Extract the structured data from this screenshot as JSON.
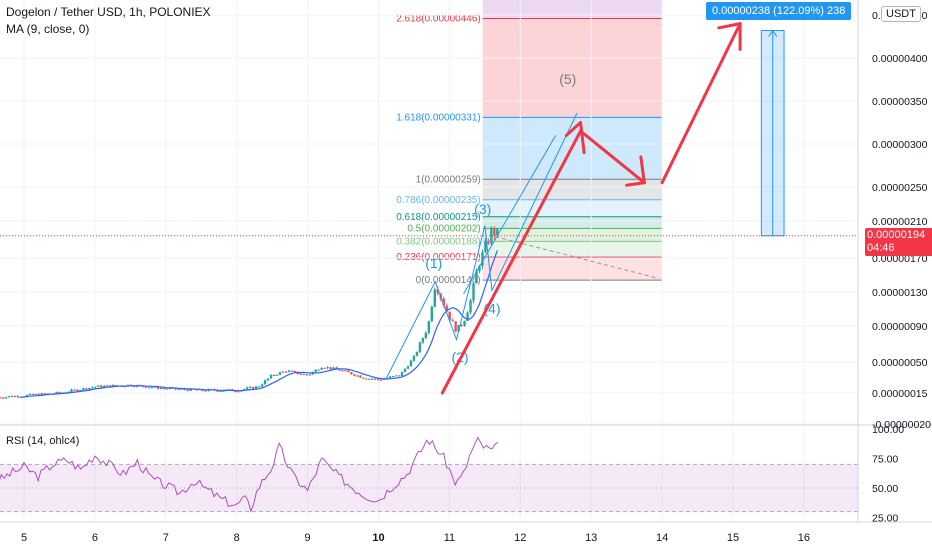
{
  "header": {
    "title": "Dogelon / Tether USD, 1h, POLONIEX",
    "indicator": "MA (9, close, 0)"
  },
  "currency_badge": "USDT",
  "price_tag": {
    "price": "0.00000194",
    "countdown": "04:46"
  },
  "measure_label": "0.00000238 (122.09%) 238",
  "rsi_label": "RSI (14, ohlc4)",
  "colors": {
    "up": "#26a69a",
    "down": "#ef5350",
    "ma": "#2962ff",
    "rsi": "#9c27b0",
    "fib_blue": "#2196f3",
    "fib_red": "#f23645",
    "arrow": "#f23645",
    "price_tag": "#f23645",
    "measure_box": "#2196f3"
  },
  "chart_data": [
    {
      "type": "candlestick",
      "x_axis": {
        "ticks": [
          "5",
          "6",
          "7",
          "8",
          "9",
          "10",
          "11",
          "12",
          "13",
          "14",
          "15",
          "16"
        ],
        "range": [
          4.6,
          17.2
        ]
      },
      "y_axis": {
        "ticks": [
          "0.00000450",
          "0.00000400",
          "0.00000350",
          "0.00000300",
          "0.00000250",
          "0.00000210",
          "0.00000170",
          "0.00000130",
          "0.00000090",
          "0.00000050",
          "0.00000015",
          "-0.00000020"
        ],
        "ticks_shown": [
          4.5e-06,
          4e-06,
          3.5e-06,
          3e-06,
          2.5e-06,
          2.1e-06,
          1.7e-06,
          1.3e-06,
          9e-07,
          5e-07,
          1.5e-07
        ]
      },
      "last_price": 1.94e-06,
      "ma_period": 9,
      "price_series": [
        [
          4.6,
          1e-07
        ],
        [
          5,
          1.2e-07
        ],
        [
          5.5,
          1.5e-07
        ],
        [
          6,
          2.2e-07
        ],
        [
          6.5,
          2.4e-07
        ],
        [
          7,
          2e-07
        ],
        [
          7.5,
          1.8e-07
        ],
        [
          8,
          1.8e-07
        ],
        [
          8.3,
          2.2e-07
        ],
        [
          8.5,
          3.5e-07
        ],
        [
          8.7,
          4e-07
        ],
        [
          9,
          3.5e-07
        ],
        [
          9.2,
          4.5e-07
        ],
        [
          9.5,
          4e-07
        ],
        [
          9.8,
          3.2e-07
        ],
        [
          10,
          3e-07
        ],
        [
          10.3,
          3.5e-07
        ],
        [
          10.5,
          5.5e-07
        ],
        [
          10.7,
          9e-07
        ],
        [
          10.8,
          1.4e-06
        ],
        [
          10.9,
          1.2e-06
        ],
        [
          11,
          1e-06
        ],
        [
          11.1,
          8.5e-07
        ],
        [
          11.2,
          9.5e-07
        ],
        [
          11.3,
          1.2e-06
        ],
        [
          11.4,
          1.6e-06
        ],
        [
          11.5,
          1.8e-06
        ],
        [
          11.6,
          2e-06
        ],
        [
          11.7,
          1.94e-06
        ]
      ],
      "elliott_wave_labels": [
        "(1)",
        "(2)",
        "(3)",
        "(4)",
        "(5)"
      ],
      "fibonacci_levels": [
        {
          "label": "0(0.00000144)",
          "ratio": 0,
          "price": 1.44e-06,
          "color": "#787b86"
        },
        {
          "label": "0.236(0.00000171)",
          "ratio": 0.236,
          "price": 1.71e-06,
          "color": "#f23645"
        },
        {
          "label": "0.382(0.00000188)",
          "ratio": 0.382,
          "price": 1.88e-06,
          "color": "#81c784"
        },
        {
          "label": "0.5(0.00000202)",
          "ratio": 0.5,
          "price": 2.02e-06,
          "color": "#4caf50"
        },
        {
          "label": "0.618(0.00000215)",
          "ratio": 0.618,
          "price": 2.15e-06,
          "color": "#089981"
        },
        {
          "label": "0.786(0.00000235)",
          "ratio": 0.786,
          "price": 2.35e-06,
          "color": "#64b5f6"
        },
        {
          "label": "1(0.00000259)",
          "ratio": 1,
          "price": 2.59e-06,
          "color": "#787b86"
        },
        {
          "label": "1.618(0.00000331)",
          "ratio": 1.618,
          "price": 3.31e-06,
          "color": "#2196f3"
        },
        {
          "label": "2.618(0.00000446)",
          "ratio": 2.618,
          "price": 4.46e-06,
          "color": "#f23645"
        }
      ],
      "measure": {
        "value": 2.38e-06,
        "percent": 122.09,
        "bars": 238,
        "from_price": 1.94e-06,
        "to_price": 4.32e-06
      }
    },
    {
      "type": "line",
      "title": "RSI (14, ohlc4)",
      "y_ticks": [
        "100.00",
        "75.00",
        "50.00",
        "25.00"
      ],
      "ylim": [
        25,
        100
      ],
      "band": [
        30,
        70
      ],
      "series": [
        {
          "values": [
            [
              4.6,
              55
            ],
            [
              4.8,
              62
            ],
            [
              5,
              68
            ],
            [
              5.2,
              60
            ],
            [
              5.4,
              70
            ],
            [
              5.6,
              74
            ],
            [
              5.8,
              66
            ],
            [
              6,
              78
            ],
            [
              6.2,
              70
            ],
            [
              6.4,
              62
            ],
            [
              6.6,
              72
            ],
            [
              6.8,
              58
            ],
            [
              7,
              52
            ],
            [
              7.2,
              46
            ],
            [
              7.4,
              56
            ],
            [
              7.6,
              48
            ],
            [
              7.8,
              40
            ],
            [
              8,
              35
            ],
            [
              8.1,
              42
            ],
            [
              8.2,
              33
            ],
            [
              8.3,
              50
            ],
            [
              8.5,
              68
            ],
            [
              8.6,
              85
            ],
            [
              8.7,
              72
            ],
            [
              8.8,
              60
            ],
            [
              9,
              48
            ],
            [
              9.2,
              74
            ],
            [
              9.4,
              62
            ],
            [
              9.6,
              52
            ],
            [
              9.8,
              44
            ],
            [
              10,
              40
            ],
            [
              10.2,
              52
            ],
            [
              10.4,
              62
            ],
            [
              10.6,
              82
            ],
            [
              10.7,
              92
            ],
            [
              10.8,
              84
            ],
            [
              10.9,
              78
            ],
            [
              11,
              66
            ],
            [
              11.05,
              58
            ],
            [
              11.1,
              54
            ],
            [
              11.2,
              62
            ],
            [
              11.3,
              80
            ],
            [
              11.4,
              90
            ],
            [
              11.5,
              84
            ],
            [
              11.6,
              82
            ],
            [
              11.7,
              86
            ]
          ]
        }
      ]
    }
  ]
}
